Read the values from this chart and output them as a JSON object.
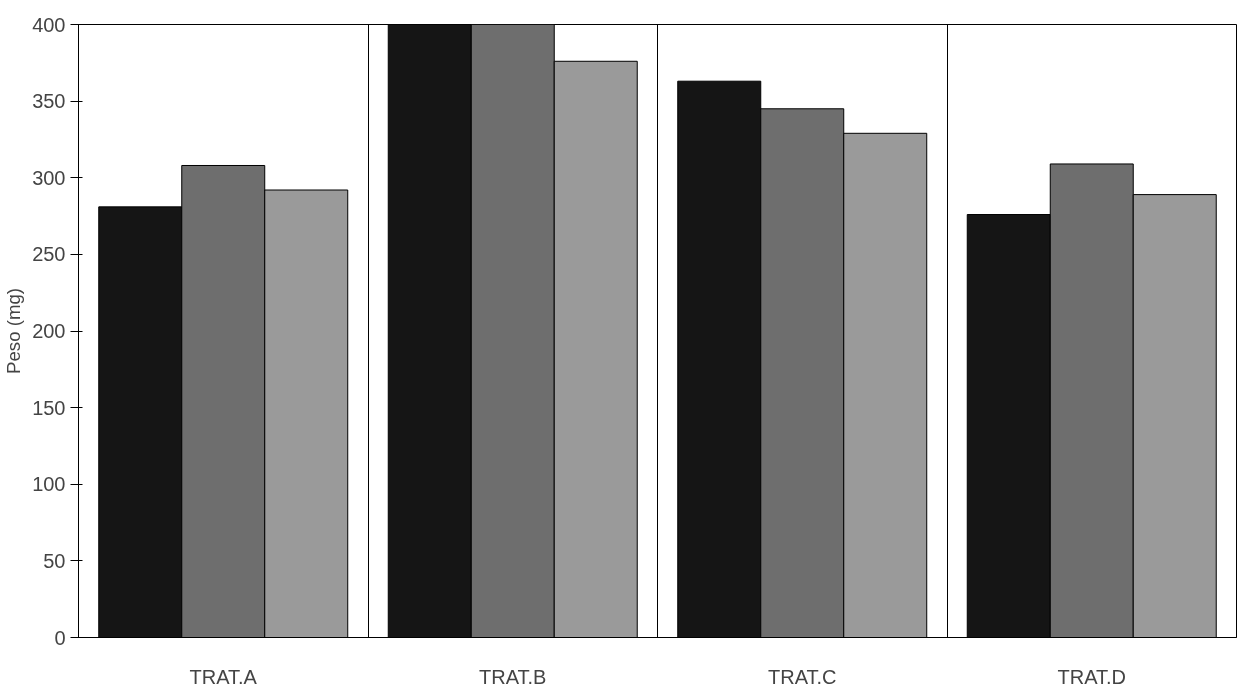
{
  "chart_data": {
    "type": "bar",
    "ylabel": "Peso (mg)",
    "categories": [
      "TRAT.A",
      "TRAT.B",
      "TRAT.C",
      "TRAT.D"
    ],
    "series": [
      {
        "color": "#151515",
        "values": [
          281,
          400,
          363,
          276
        ]
      },
      {
        "color": "#6e6e6e",
        "values": [
          308,
          400,
          345,
          309
        ]
      },
      {
        "color": "#9a9a9a",
        "values": [
          292,
          376,
          329,
          289
        ]
      }
    ],
    "ylim": [
      0,
      400
    ],
    "yticks": [
      0,
      50,
      100,
      150,
      200,
      250,
      300,
      350,
      400
    ],
    "grid": "x"
  }
}
